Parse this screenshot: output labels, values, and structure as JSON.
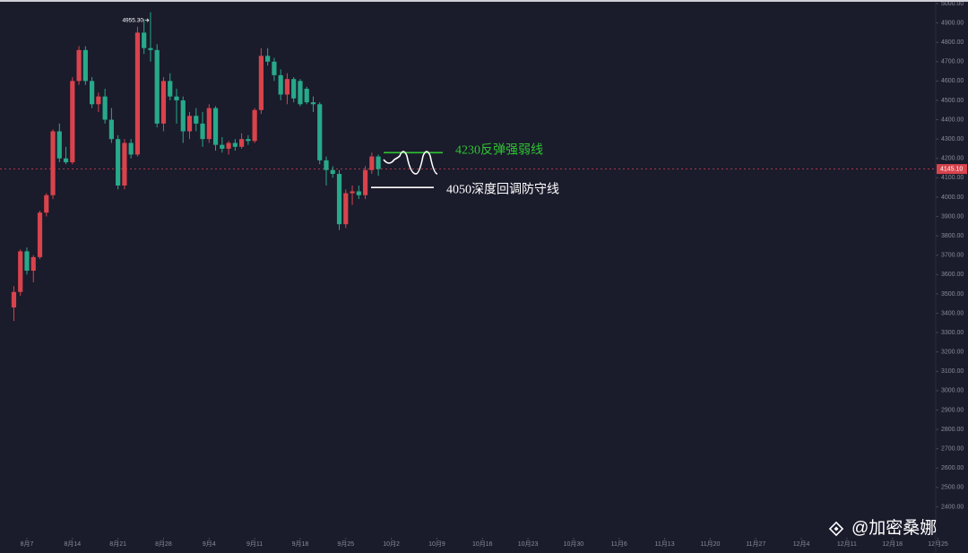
{
  "chart_data": {
    "type": "candlestick",
    "x": [
      2,
      3,
      4,
      5,
      6,
      7,
      8,
      9,
      10,
      11,
      12,
      13,
      14,
      15,
      16,
      17,
      18,
      19,
      20,
      21,
      22,
      23,
      24,
      25,
      26,
      27,
      28,
      29,
      30,
      31,
      32,
      33,
      34,
      35,
      36,
      37,
      38,
      39,
      40,
      41,
      42,
      43,
      44,
      45,
      46,
      47,
      48,
      49,
      50,
      51,
      52,
      53,
      54,
      55,
      56,
      57,
      58
    ],
    "open": [
      3430,
      3510,
      3720,
      3620,
      3690,
      3920,
      4010,
      4340,
      4200,
      4180,
      4600,
      4760,
      4600,
      4480,
      4520,
      4400,
      4300,
      4060,
      4280,
      4220,
      4850,
      4770,
      4760,
      4380,
      4600,
      4520,
      4500,
      4340,
      4420,
      4380,
      4300,
      4460,
      4270,
      4250,
      4280,
      4260,
      4300,
      4290,
      4450,
      4730,
      4700,
      4630,
      4530,
      4610,
      4600,
      4560,
      4490,
      4480,
      4190,
      4140,
      4120,
      3860,
      4020,
      4030,
      4010,
      4140,
      4210
    ],
    "high": [
      3540,
      3730,
      3740,
      3700,
      3930,
      4020,
      4350,
      4380,
      4260,
      4620,
      4780,
      4780,
      4620,
      4540,
      4560,
      4460,
      4320,
      4300,
      4300,
      4880,
      4920,
      4955.3,
      4790,
      4620,
      4640,
      4560,
      4520,
      4440,
      4460,
      4440,
      4480,
      4470,
      4310,
      4290,
      4300,
      4330,
      4320,
      4460,
      4770,
      4770,
      4720,
      4660,
      4640,
      4620,
      4610,
      4570,
      4520,
      4490,
      4210,
      4160,
      4140,
      4040,
      4060,
      4060,
      4160,
      4230,
      4220
    ],
    "low": [
      3360,
      3490,
      3600,
      3560,
      3680,
      3900,
      3990,
      4180,
      4170,
      4170,
      4580,
      4580,
      4460,
      4440,
      4380,
      4280,
      4040,
      4040,
      4200,
      4210,
      4740,
      4700,
      4360,
      4340,
      4500,
      4380,
      4280,
      4300,
      4340,
      4260,
      4280,
      4240,
      4230,
      4220,
      4240,
      4250,
      4270,
      4280,
      4430,
      4680,
      4600,
      4500,
      4480,
      4490,
      4470,
      4480,
      4440,
      4170,
      4060,
      4100,
      3830,
      3840,
      3960,
      3990,
      3990,
      4120,
      4110
    ],
    "close": [
      3510,
      3720,
      3620,
      3690,
      3920,
      4010,
      4340,
      4200,
      4180,
      4600,
      4760,
      4600,
      4480,
      4520,
      4400,
      4300,
      4060,
      4280,
      4220,
      4850,
      4770,
      4760,
      4380,
      4600,
      4520,
      4500,
      4340,
      4420,
      4380,
      4300,
      4460,
      4270,
      4250,
      4280,
      4260,
      4300,
      4290,
      4450,
      4730,
      4700,
      4630,
      4530,
      4610,
      4510,
      4480,
      4490,
      4480,
      4190,
      4140,
      4120,
      3860,
      4020,
      4030,
      4010,
      4140,
      4210,
      4145.1
    ],
    "up_color": "#d8434c",
    "down_color": "#27a98a",
    "xlim": [
      -0.13,
      143.1
    ],
    "xticks": [
      {
        "value": 4,
        "label": "8月7"
      },
      {
        "value": 11,
        "label": "8月14"
      },
      {
        "value": 18,
        "label": "8月21"
      },
      {
        "value": 25,
        "label": "8月28"
      },
      {
        "value": 32,
        "label": "9月4"
      },
      {
        "value": 39,
        "label": "9月11"
      },
      {
        "value": 46,
        "label": "9月18"
      },
      {
        "value": 53,
        "label": "9月25"
      },
      {
        "value": 60,
        "label": "10月2"
      },
      {
        "value": 67,
        "label": "10月9"
      },
      {
        "value": 74,
        "label": "10月16"
      },
      {
        "value": 81,
        "label": "10月23"
      },
      {
        "value": 88,
        "label": "10月30"
      },
      {
        "value": 95,
        "label": "11月6"
      },
      {
        "value": 102,
        "label": "11月13"
      },
      {
        "value": 109,
        "label": "11月20"
      },
      {
        "value": 116,
        "label": "11月27"
      },
      {
        "value": 123,
        "label": "12月4"
      },
      {
        "value": 130,
        "label": "12月11"
      },
      {
        "value": 137,
        "label": "12月18"
      },
      {
        "value": 144,
        "label": "12月25"
      }
    ],
    "ylim": [
      2240,
      5018.5
    ],
    "yticks": [
      {
        "value": 5000,
        "label": "5000.00"
      },
      {
        "value": 4900,
        "label": "4900.00"
      },
      {
        "value": 4800,
        "label": "4800.00"
      },
      {
        "value": 4700,
        "label": "4700.00"
      },
      {
        "value": 4600,
        "label": "4600.00"
      },
      {
        "value": 4500,
        "label": "4500.00"
      },
      {
        "value": 4400,
        "label": "4400.00"
      },
      {
        "value": 4300,
        "label": "4300.00"
      },
      {
        "value": 4200,
        "label": "4200.00"
      },
      {
        "value": 4100,
        "label": "4100.00"
      },
      {
        "value": 4000,
        "label": "4000.00"
      },
      {
        "value": 3900,
        "label": "3900.00"
      },
      {
        "value": 3800,
        "label": "3800.00"
      },
      {
        "value": 3700,
        "label": "3700.00"
      },
      {
        "value": 3600,
        "label": "3600.00"
      },
      {
        "value": 3500,
        "label": "3500.00"
      },
      {
        "value": 3400,
        "label": "3400.00"
      },
      {
        "value": 3300,
        "label": "3300.00"
      },
      {
        "value": 3200,
        "label": "3200.00"
      },
      {
        "value": 3100,
        "label": "3100.00"
      },
      {
        "value": 3000,
        "label": "3000.00"
      },
      {
        "value": 2900,
        "label": "2900.00"
      },
      {
        "value": 2800,
        "label": "2800.00"
      },
      {
        "value": 2700,
        "label": "2700.00"
      },
      {
        "value": 2600,
        "label": "2600.00"
      },
      {
        "value": 2500,
        "label": "2500.00"
      },
      {
        "value": 2400,
        "label": "2400.00"
      }
    ],
    "last_price": {
      "value": 4145.1,
      "label": "4145.10",
      "color": "#d8434c"
    },
    "high_marker": {
      "value": 4955.3,
      "label": "4955.30"
    },
    "annotations": [
      {
        "text": "4230反弹强弱线",
        "value": 4230,
        "color": "#2ec531"
      },
      {
        "text": "4050深度回调防守线",
        "value": 4050,
        "color": "#ffffff"
      }
    ]
  },
  "watermark": "@加密桑娜"
}
